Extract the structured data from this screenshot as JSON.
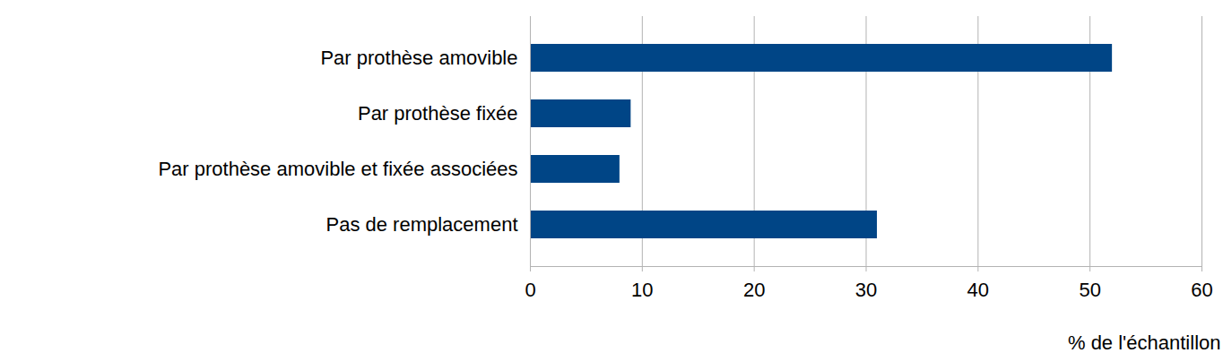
{
  "chart_data": {
    "type": "bar",
    "orientation": "horizontal",
    "categories": [
      "Par prothèse amovible",
      "Par prothèse fixée",
      "Par prothèse amovible et fixée associées",
      "Pas de remplacement"
    ],
    "values": [
      52,
      9,
      8,
      31
    ],
    "color": "#004586",
    "x_label": "% de l'échantillon",
    "xlim": [
      0,
      60
    ],
    "xticks": [
      0,
      10,
      20,
      30,
      40,
      50,
      60
    ],
    "grid": true
  }
}
